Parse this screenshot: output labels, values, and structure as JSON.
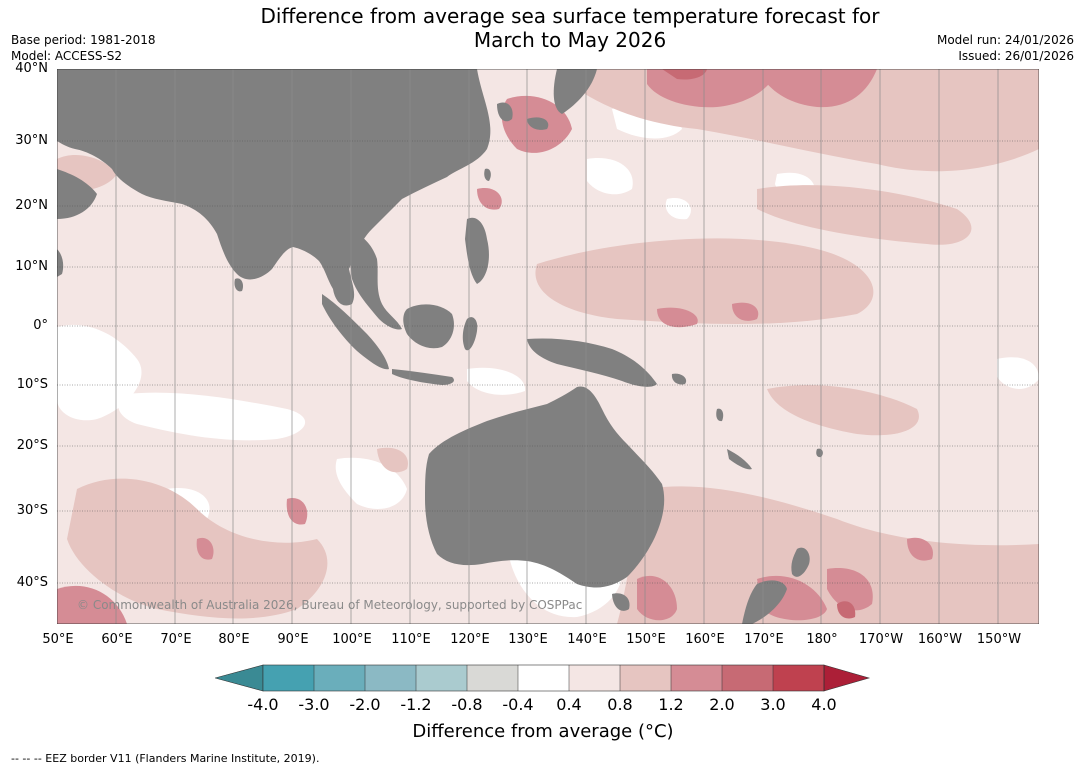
{
  "title": {
    "line1": "Difference from average sea surface temperature forecast for",
    "line2": "March to May 2026"
  },
  "meta_left": {
    "base_period": "Base period: 1981-2018",
    "model": "Model: ACCESS-S2"
  },
  "meta_right": {
    "model_run": "Model run: 24/01/2026",
    "issued": "Issued: 26/01/2026"
  },
  "latitude_labels": [
    "40°N",
    "30°N",
    "20°N",
    "10°N",
    "0°",
    "10°S",
    "20°S",
    "30°S",
    "40°S"
  ],
  "longitude_labels": [
    "50°E",
    "60°E",
    "70°E",
    "80°E",
    "90°E",
    "100°E",
    "110°E",
    "120°E",
    "130°E",
    "140°E",
    "150°E",
    "160°E",
    "170°E",
    "180°",
    "170°W",
    "160°W",
    "150°W"
  ],
  "copyright": "© Commonwealth of Australia 2026, Bureau of Meteorology, supported by COSPPac",
  "colorbar": {
    "label": "Difference from average (°C)",
    "ticks": [
      "-4.0",
      "-3.0",
      "-2.0",
      "-1.2",
      "-0.8",
      "-0.4",
      "0.4",
      "0.8",
      "1.2",
      "2.0",
      "3.0",
      "4.0"
    ],
    "colors": {
      "lt_-4": "#3a8a94",
      "-4_-3": "#45a1b1",
      "-3_-2": "#6aaebb",
      "-2_-1.2": "#8bb9c4",
      "-1.2_-0.8": "#aacbcf",
      "-0.8_-0.4": "#d9d9d6",
      "-0.4_0.4": "#ffffff",
      "0.4_0.8": "#f4e6e4",
      "0.8_1.2": "#e6c5c1",
      "1.2_2.0": "#d58c95",
      "2.0_3.0": "#c76a74",
      "3.0_4.0": "#bf414f",
      "gt_4": "#ac1f37"
    }
  },
  "land_color": "#808080",
  "footnote": "--  --  -- EEZ border V11 (Flanders Marine Institute, 2019)."
}
